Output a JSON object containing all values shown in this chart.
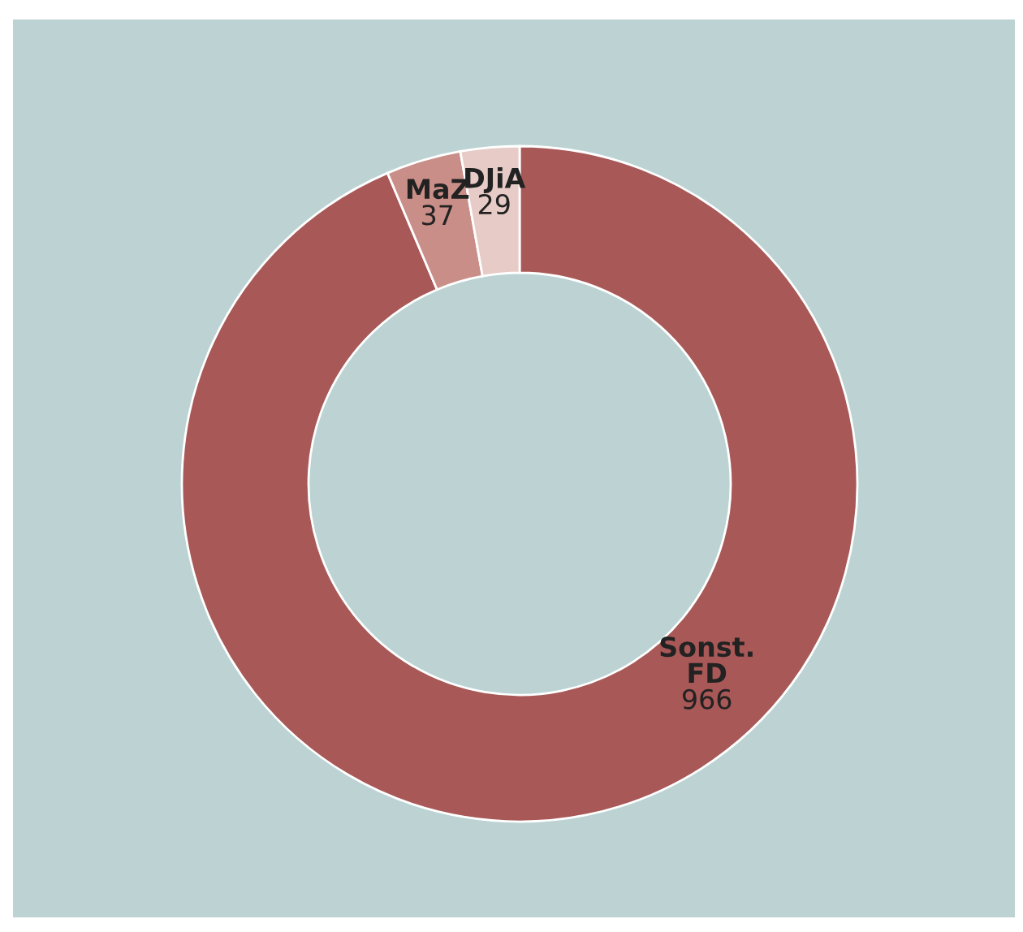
{
  "chart_data": {
    "type": "donut",
    "categories": [
      "Sonst.\nFD",
      "MaZ",
      "DJiA"
    ],
    "values": [
      966,
      37,
      29
    ],
    "colors": [
      "#a85856",
      "#c98e87",
      "#e6cbc6"
    ],
    "data_labels": true
  }
}
